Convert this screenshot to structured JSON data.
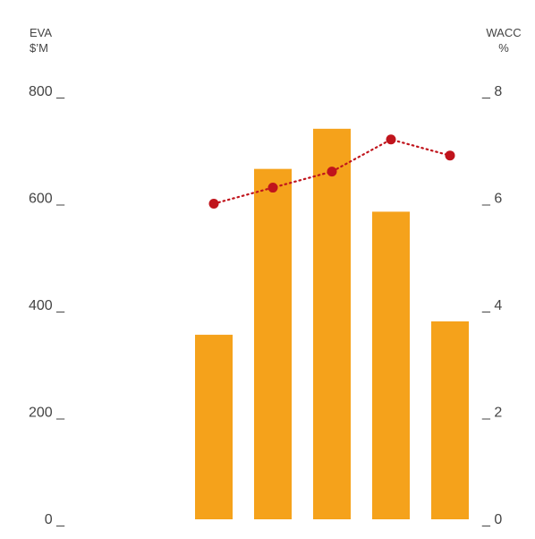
{
  "chart_data": {
    "type": "bar",
    "categories": [
      "",
      "",
      "",
      "",
      ""
    ],
    "left_axis": {
      "label_line1": "EVA",
      "label_line2": "$’M",
      "ylim": [
        0,
        800
      ],
      "ticks": [
        0,
        200,
        400,
        600,
        800
      ],
      "tick_labels": [
        "0 _",
        "200 _",
        "400 _",
        "600 _",
        "800 _"
      ]
    },
    "right_axis": {
      "label_line1": "WACC",
      "label_line2": "%",
      "ylim": [
        0,
        8
      ],
      "ticks": [
        0,
        2,
        4,
        6,
        8
      ],
      "tick_labels": [
        "_ 0",
        "_ 2",
        "_ 4",
        "_ 6",
        "_ 8"
      ]
    },
    "series": [
      {
        "kind": "bar",
        "axis": "left",
        "color": "#f5a21b",
        "values": [
          345,
          655,
          730,
          575,
          370
        ]
      },
      {
        "kind": "line",
        "axis": "right",
        "color": "#c0141c",
        "line_style": "dotted",
        "values": [
          5.9,
          6.2,
          6.5,
          7.1,
          6.8
        ]
      }
    ],
    "grid": false,
    "legend": "none"
  }
}
